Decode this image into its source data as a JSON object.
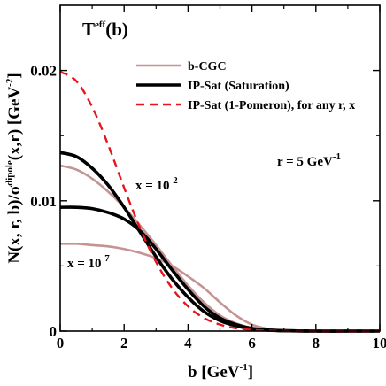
{
  "chart_data": {
    "type": "line",
    "title_main": "T",
    "title_sup": "eff",
    "title_tail": "(b)",
    "xlabel": {
      "main": "b [GeV",
      "sup": "-1",
      "tail": "]"
    },
    "ylabel": {
      "p1": "N(x, r, b)/σ",
      "p1_sup": "dipole",
      "p2": "(x,r)  [GeV",
      "p2_sup": "-2",
      "p3": "]"
    },
    "xlim": [
      0,
      10
    ],
    "ylim": [
      0,
      0.025
    ],
    "xticks": [
      0,
      2,
      4,
      6,
      8,
      10
    ],
    "xtick_labels": [
      "0",
      "2",
      "4",
      "6",
      "8",
      "10"
    ],
    "yticks": [
      0,
      0.01,
      0.02
    ],
    "ytick_labels": [
      "0",
      "0.01",
      "0.02"
    ],
    "grid": false,
    "legend_position": "top-right",
    "annotations": {
      "r_main": "r = 5 GeV",
      "r_sup": "-1",
      "x1_main": "x = 10",
      "x1_sup": "-2",
      "x2_main": "x = 10",
      "x2_sup": "-7"
    },
    "series": [
      {
        "name": "b-CGC",
        "legend": true,
        "style": "solid",
        "color": "#c49494",
        "x": [
          0,
          0.5,
          1,
          1.5,
          2,
          2.5,
          3,
          3.5,
          4,
          4.5,
          5,
          5.5,
          6,
          6.5,
          7,
          7.5,
          8,
          9,
          10
        ],
        "y": [
          0.0127,
          0.0124,
          0.0117,
          0.0107,
          0.0095,
          0.0081,
          0.0066,
          0.005,
          0.0035,
          0.0022,
          0.0012,
          0.0006,
          0.00025,
          0.0001,
          3e-05,
          1e-05,
          0,
          0,
          0
        ]
      },
      {
        "name": "b-CGC (x = 10^-7)",
        "legend": false,
        "style": "solid",
        "color": "#c49494",
        "x": [
          0,
          0.5,
          1,
          1.5,
          2,
          2.5,
          3,
          3.5,
          4,
          4.5,
          5,
          5.5,
          6,
          6.5,
          7,
          7.5,
          8,
          9,
          10
        ],
        "y": [
          0.0067,
          0.0067,
          0.0066,
          0.0065,
          0.0063,
          0.006,
          0.0056,
          0.005,
          0.0042,
          0.0033,
          0.0022,
          0.0012,
          0.0005,
          0.00018,
          6e-05,
          2e-05,
          0,
          0,
          0
        ]
      },
      {
        "name": "IP-Sat (Saturation)",
        "legend": true,
        "style": "solid",
        "color": "#000000",
        "x": [
          0,
          0.5,
          1,
          1.5,
          2,
          2.5,
          3,
          3.5,
          4,
          4.5,
          5,
          5.5,
          6,
          6.5,
          7,
          8,
          9,
          10
        ],
        "y": [
          0.0137,
          0.0134,
          0.0125,
          0.0112,
          0.0095,
          0.0076,
          0.0057,
          0.004,
          0.0026,
          0.0015,
          0.0008,
          0.0004,
          0.00018,
          7e-05,
          3e-05,
          0,
          0,
          0
        ]
      },
      {
        "name": "IP-Sat (Saturation, x = 10^-7)",
        "legend": false,
        "style": "solid",
        "color": "#000000",
        "x": [
          0,
          0.5,
          1,
          1.5,
          2,
          2.5,
          3,
          3.5,
          4,
          4.5,
          5,
          5.5,
          6,
          6.5,
          7,
          8,
          9,
          10
        ],
        "y": [
          0.0095,
          0.0095,
          0.0094,
          0.0091,
          0.0086,
          0.0077,
          0.0063,
          0.0047,
          0.0032,
          0.0019,
          0.001,
          0.0005,
          0.0002,
          8e-05,
          3e-05,
          0,
          0,
          0
        ]
      },
      {
        "name": "IP-Sat (1-Pomeron), for any  r, x",
        "legend": true,
        "style": "dashed",
        "color": "#e8141c",
        "x": [
          0,
          0.5,
          1,
          1.5,
          2,
          2.5,
          3,
          3.5,
          4,
          4.5,
          5,
          5.5,
          6,
          6.5,
          7,
          8,
          9,
          10
        ],
        "y": [
          0.0199,
          0.0192,
          0.0172,
          0.0143,
          0.011,
          0.0079,
          0.0053,
          0.0033,
          0.0019,
          0.001,
          0.0005,
          0.00022,
          9e-05,
          3e-05,
          1e-05,
          0,
          0,
          0
        ]
      }
    ]
  }
}
